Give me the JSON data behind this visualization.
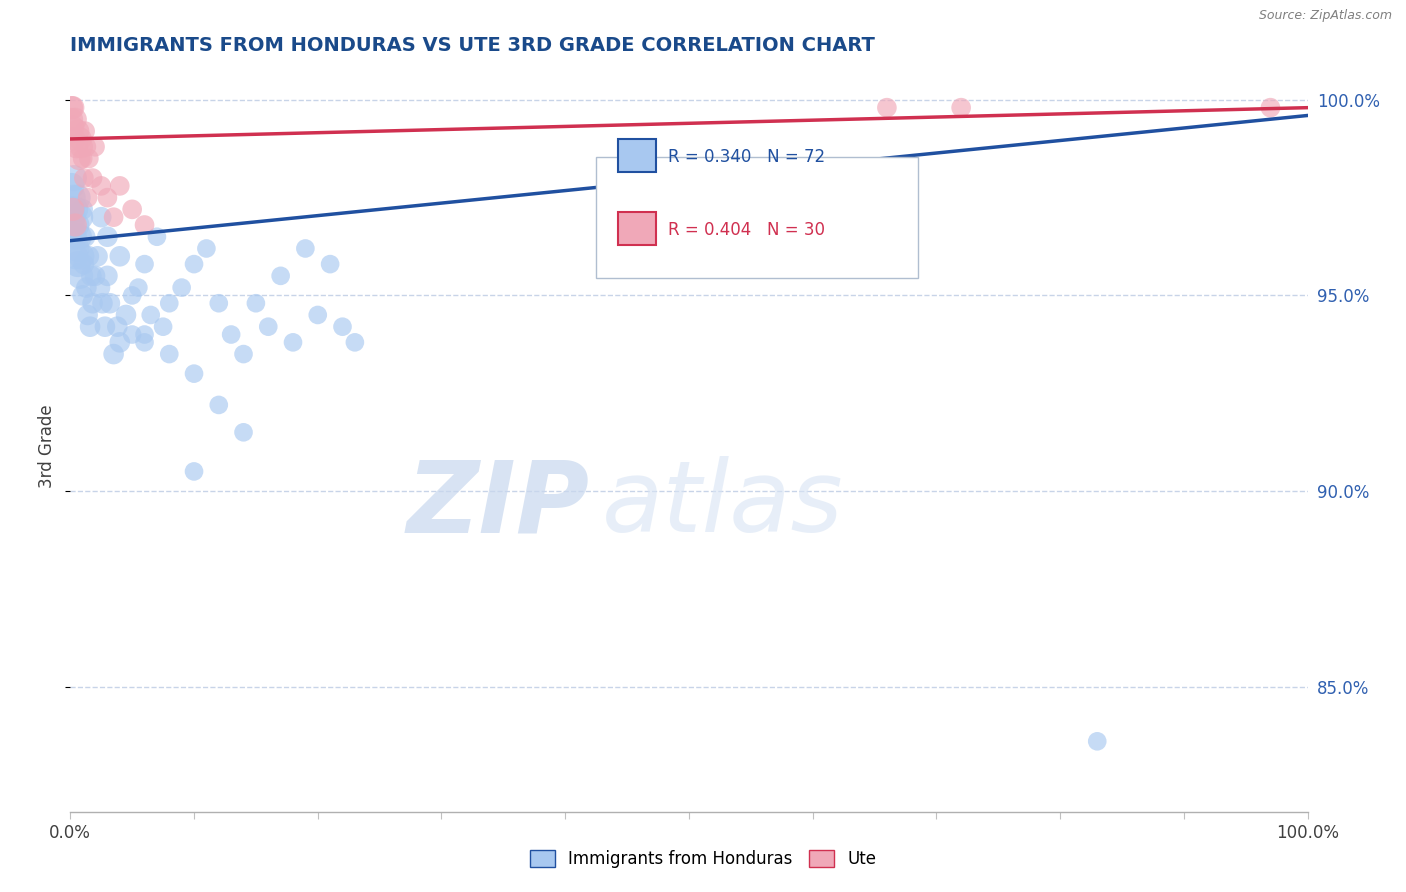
{
  "title": "IMMIGRANTS FROM HONDURAS VS UTE 3RD GRADE CORRELATION CHART",
  "source": "Source: ZipAtlas.com",
  "ylabel": "3rd Grade",
  "watermark_zip": "ZIP",
  "watermark_atlas": "atlas",
  "legend_blue_label": "Immigrants from Honduras",
  "legend_pink_label": "Ute",
  "r_blue": 0.34,
  "n_blue": 72,
  "r_pink": 0.404,
  "n_pink": 30,
  "blue_color": "#A8C8F0",
  "pink_color": "#F0A8B8",
  "trend_blue": "#2050A0",
  "trend_pink": "#D03050",
  "xlim": [
    0.0,
    1.0
  ],
  "ylim": [
    0.818,
    1.005
  ],
  "yticks": [
    0.85,
    0.9,
    0.95,
    1.0
  ],
  "ytick_labels": [
    "85.0%",
    "90.0%",
    "95.0%",
    "100.0%"
  ],
  "title_color": "#1A4A8A",
  "source_color": "#808080",
  "axis_label_color": "#404040",
  "right_tick_color": "#3060B0",
  "grid_color": "#C8D4E8",
  "background_color": "#FFFFFF",
  "blue_trend_y0": 0.964,
  "blue_trend_y1": 0.996,
  "pink_trend_y0": 0.99,
  "pink_trend_y1": 0.998,
  "blue_points_x": [
    0.001,
    0.001,
    0.001,
    0.002,
    0.002,
    0.003,
    0.003,
    0.004,
    0.004,
    0.005,
    0.005,
    0.006,
    0.006,
    0.007,
    0.008,
    0.008,
    0.009,
    0.01,
    0.01,
    0.011,
    0.012,
    0.013,
    0.014,
    0.015,
    0.016,
    0.017,
    0.018,
    0.02,
    0.022,
    0.024,
    0.026,
    0.028,
    0.03,
    0.032,
    0.035,
    0.038,
    0.04,
    0.045,
    0.05,
    0.055,
    0.06,
    0.065,
    0.07,
    0.075,
    0.08,
    0.09,
    0.1,
    0.11,
    0.12,
    0.13,
    0.14,
    0.15,
    0.16,
    0.17,
    0.18,
    0.19,
    0.2,
    0.21,
    0.22,
    0.23,
    0.06,
    0.08,
    0.1,
    0.12,
    0.14,
    0.025,
    0.03,
    0.04,
    0.05,
    0.06,
    0.1,
    0.83
  ],
  "blue_points_y": [
    0.978,
    0.972,
    0.968,
    0.975,
    0.97,
    0.965,
    0.98,
    0.96,
    0.972,
    0.968,
    0.962,
    0.975,
    0.958,
    0.965,
    0.97,
    0.955,
    0.96,
    0.972,
    0.95,
    0.958,
    0.965,
    0.952,
    0.945,
    0.96,
    0.942,
    0.955,
    0.948,
    0.955,
    0.96,
    0.952,
    0.948,
    0.942,
    0.955,
    0.948,
    0.935,
    0.942,
    0.938,
    0.945,
    0.94,
    0.952,
    0.958,
    0.945,
    0.965,
    0.942,
    0.935,
    0.952,
    0.958,
    0.962,
    0.948,
    0.94,
    0.935,
    0.948,
    0.942,
    0.955,
    0.938,
    0.962,
    0.945,
    0.958,
    0.942,
    0.938,
    0.938,
    0.948,
    0.93,
    0.922,
    0.915,
    0.97,
    0.965,
    0.96,
    0.95,
    0.94,
    0.905,
    0.836
  ],
  "pink_points_x": [
    0.001,
    0.001,
    0.002,
    0.002,
    0.003,
    0.004,
    0.005,
    0.006,
    0.007,
    0.008,
    0.009,
    0.01,
    0.011,
    0.012,
    0.013,
    0.014,
    0.015,
    0.018,
    0.02,
    0.025,
    0.03,
    0.035,
    0.04,
    0.05,
    0.06,
    0.002,
    0.004,
    0.66,
    0.72,
    0.97
  ],
  "pink_points_y": [
    0.998,
    0.995,
    0.993,
    0.998,
    0.99,
    0.995,
    0.988,
    0.992,
    0.985,
    0.99,
    0.988,
    0.985,
    0.98,
    0.992,
    0.988,
    0.975,
    0.985,
    0.98,
    0.988,
    0.978,
    0.975,
    0.97,
    0.978,
    0.972,
    0.968,
    0.972,
    0.968,
    0.998,
    0.998,
    0.998
  ]
}
